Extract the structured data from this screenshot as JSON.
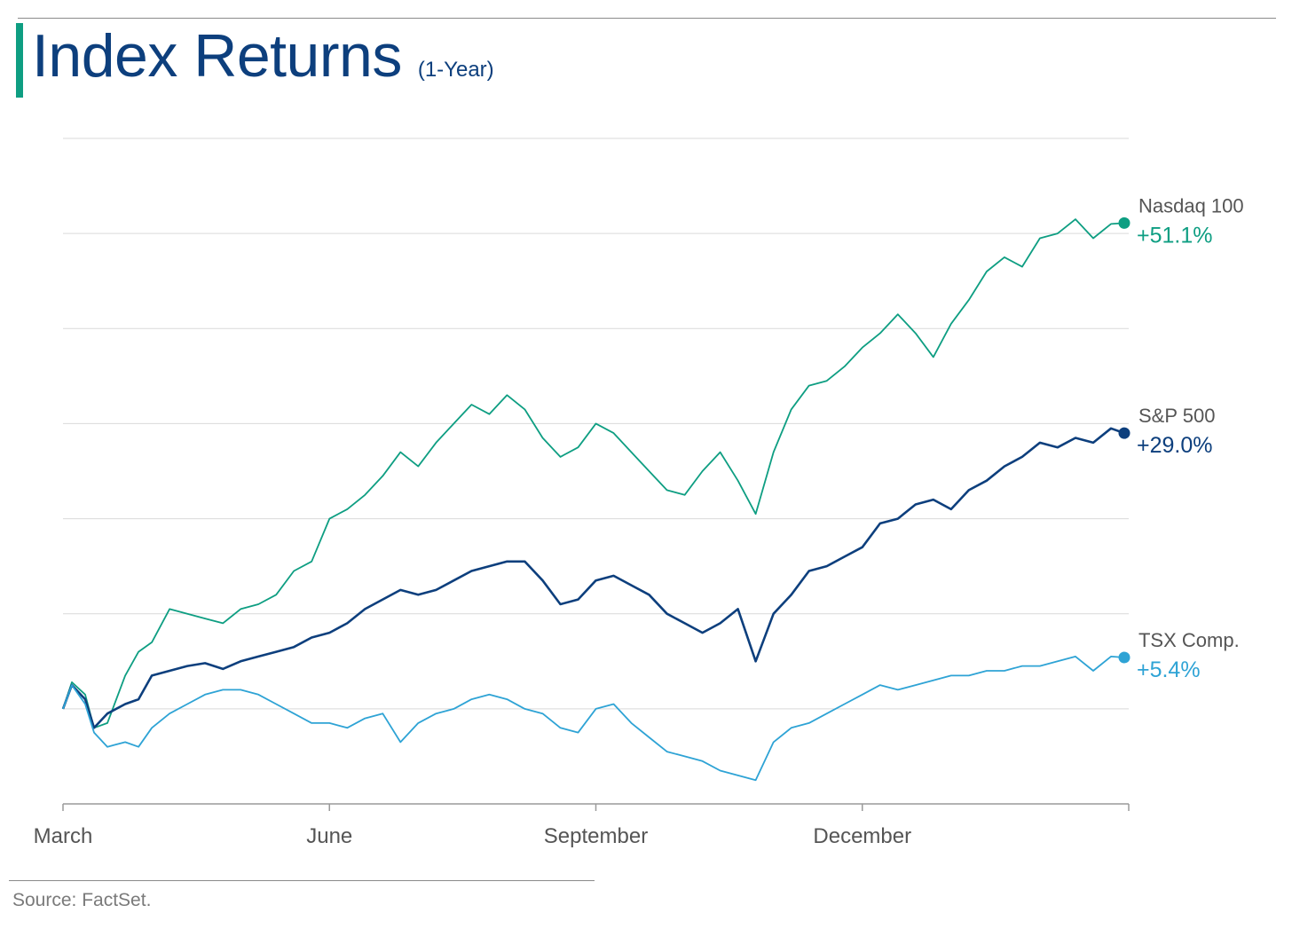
{
  "header": {
    "title": "Index Returns",
    "subtitle": "(1-Year)"
  },
  "footer": {
    "source": "Source: FactSet."
  },
  "colors": {
    "nasdaq": "#0e9e82",
    "sp500": "#0d3f7d",
    "tsx": "#2ea3d5",
    "grid": "#d9d9d9",
    "axis": "#9a9a9a",
    "label_gray": "#555555"
  },
  "chart_data": {
    "type": "line",
    "title": "Index Returns",
    "subtitle": "(1-Year)",
    "xlabel": "",
    "ylabel": "",
    "x_ticks": [
      "March",
      "June",
      "September",
      "December"
    ],
    "x_tick_positions_month": [
      0,
      3,
      6,
      9
    ],
    "x_range_months": [
      0,
      12
    ],
    "ylim": [
      -10,
      60
    ],
    "y_gridlines": [
      -10,
      0,
      10,
      20,
      30,
      40,
      50,
      60
    ],
    "grid": true,
    "legend": "end-of-line labels (right)",
    "series": [
      {
        "name": "Nasdaq 100",
        "end_label": "+51.1%",
        "color": "#0e9e82",
        "x": [
          0,
          0.1,
          0.25,
          0.35,
          0.5,
          0.7,
          0.85,
          1.0,
          1.2,
          1.4,
          1.6,
          1.8,
          2.0,
          2.2,
          2.4,
          2.6,
          2.8,
          3.0,
          3.2,
          3.4,
          3.6,
          3.8,
          4.0,
          4.2,
          4.4,
          4.6,
          4.8,
          5.0,
          5.2,
          5.4,
          5.6,
          5.8,
          6.0,
          6.2,
          6.4,
          6.6,
          6.8,
          7.0,
          7.2,
          7.4,
          7.6,
          7.8,
          8.0,
          8.2,
          8.4,
          8.6,
          8.8,
          9.0,
          9.2,
          9.4,
          9.6,
          9.8,
          10.0,
          10.2,
          10.4,
          10.6,
          10.8,
          11.0,
          11.2,
          11.4,
          11.6,
          11.8,
          11.95
        ],
        "values": [
          0,
          2.8,
          1.5,
          -2.0,
          -1.5,
          3.5,
          6.0,
          7.0,
          10.5,
          10.0,
          9.5,
          9.0,
          10.5,
          11.0,
          12.0,
          14.5,
          15.5,
          20.0,
          21.0,
          22.5,
          24.5,
          27.0,
          25.5,
          28.0,
          30.0,
          32.0,
          31.0,
          33.0,
          31.5,
          28.5,
          26.5,
          27.5,
          30.0,
          29.0,
          27.0,
          25.0,
          23.0,
          22.5,
          25.0,
          27.0,
          24.0,
          20.5,
          27.0,
          31.5,
          34.0,
          34.5,
          36.0,
          38.0,
          39.5,
          41.5,
          39.5,
          37.0,
          40.5,
          43.0,
          46.0,
          47.5,
          46.5,
          49.5,
          50.0,
          51.5,
          49.5,
          51.0,
          51.1
        ]
      },
      {
        "name": "S&P 500",
        "end_label": "+29.0%",
        "color": "#0d3f7d",
        "x": [
          0,
          0.1,
          0.25,
          0.35,
          0.5,
          0.7,
          0.85,
          1.0,
          1.2,
          1.4,
          1.6,
          1.8,
          2.0,
          2.2,
          2.4,
          2.6,
          2.8,
          3.0,
          3.2,
          3.4,
          3.6,
          3.8,
          4.0,
          4.2,
          4.4,
          4.6,
          4.8,
          5.0,
          5.2,
          5.4,
          5.6,
          5.8,
          6.0,
          6.2,
          6.4,
          6.6,
          6.8,
          7.0,
          7.2,
          7.4,
          7.6,
          7.8,
          8.0,
          8.2,
          8.4,
          8.6,
          8.8,
          9.0,
          9.2,
          9.4,
          9.6,
          9.8,
          10.0,
          10.2,
          10.4,
          10.6,
          10.8,
          11.0,
          11.2,
          11.4,
          11.6,
          11.8,
          11.95
        ],
        "values": [
          0,
          2.5,
          1.0,
          -2.0,
          -0.5,
          0.5,
          1.0,
          3.5,
          4.0,
          4.5,
          4.8,
          4.2,
          5.0,
          5.5,
          6.0,
          6.5,
          7.5,
          8.0,
          9.0,
          10.5,
          11.5,
          12.5,
          12.0,
          12.5,
          13.5,
          14.5,
          15.0,
          15.5,
          15.5,
          13.5,
          11.0,
          11.5,
          13.5,
          14.0,
          13.0,
          12.0,
          10.0,
          9.0,
          8.0,
          9.0,
          10.5,
          5.0,
          10.0,
          12.0,
          14.5,
          15.0,
          16.0,
          17.0,
          19.5,
          20.0,
          21.5,
          22.0,
          21.0,
          23.0,
          24.0,
          25.5,
          26.5,
          28.0,
          27.5,
          28.5,
          28.0,
          29.5,
          29.0
        ]
      },
      {
        "name": "TSX Comp.",
        "end_label": "+5.4%",
        "color": "#2ea3d5",
        "x": [
          0,
          0.1,
          0.25,
          0.35,
          0.5,
          0.7,
          0.85,
          1.0,
          1.2,
          1.4,
          1.6,
          1.8,
          2.0,
          2.2,
          2.4,
          2.6,
          2.8,
          3.0,
          3.2,
          3.4,
          3.6,
          3.8,
          4.0,
          4.2,
          4.4,
          4.6,
          4.8,
          5.0,
          5.2,
          5.4,
          5.6,
          5.8,
          6.0,
          6.2,
          6.4,
          6.6,
          6.8,
          7.0,
          7.2,
          7.4,
          7.6,
          7.8,
          8.0,
          8.2,
          8.4,
          8.6,
          8.8,
          9.0,
          9.2,
          9.4,
          9.6,
          9.8,
          10.0,
          10.2,
          10.4,
          10.6,
          10.8,
          11.0,
          11.2,
          11.4,
          11.6,
          11.8,
          11.95
        ],
        "values": [
          0,
          2.5,
          0.5,
          -2.5,
          -4.0,
          -3.5,
          -4.0,
          -2.0,
          -0.5,
          0.5,
          1.5,
          2.0,
          2.0,
          1.5,
          0.5,
          -0.5,
          -1.5,
          -1.5,
          -2.0,
          -1.0,
          -0.5,
          -3.5,
          -1.5,
          -0.5,
          0,
          1.0,
          1.5,
          1.0,
          0,
          -0.5,
          -2.0,
          -2.5,
          0,
          0.5,
          -1.5,
          -3.0,
          -4.5,
          -5.0,
          -5.5,
          -6.5,
          -7.0,
          -7.5,
          -3.5,
          -2.0,
          -1.5,
          -0.5,
          0.5,
          1.5,
          2.5,
          2.0,
          2.5,
          3.0,
          3.5,
          3.5,
          4.0,
          4.0,
          4.5,
          4.5,
          5.0,
          5.5,
          4.0,
          5.5,
          5.4
        ]
      }
    ]
  }
}
